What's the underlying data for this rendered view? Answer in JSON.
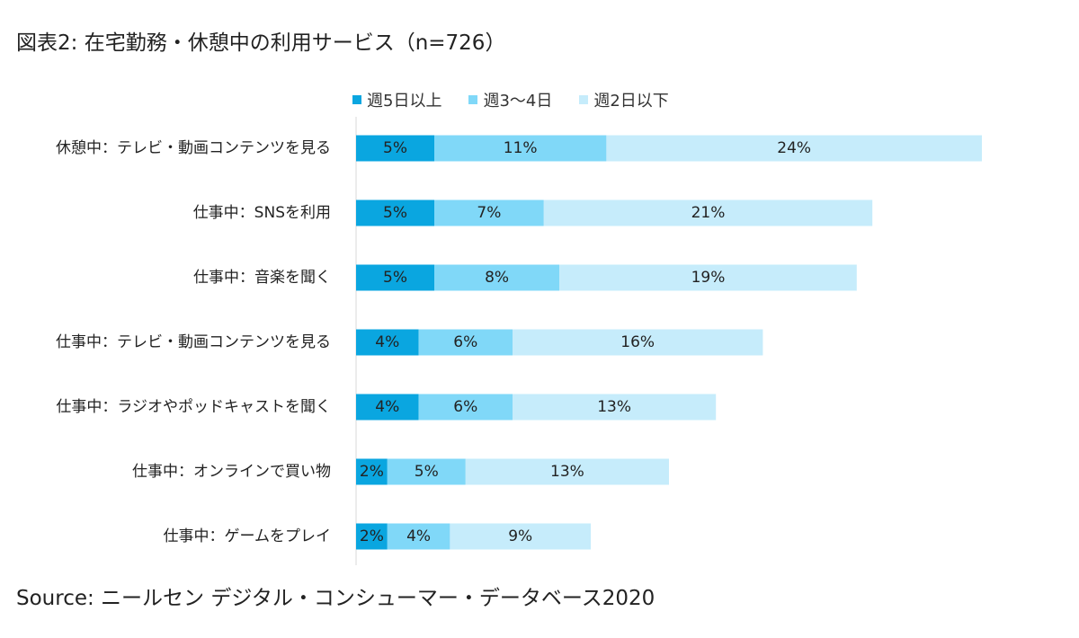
{
  "title": "図表2: 在宅勤務・休憩中の利用サービス（n=726）",
  "source": "Source: ニールセン デジタル・コンシューマー・データベース2020",
  "colors": [
    "#0aa6e0",
    "#80d8f8",
    "#c6ecfb"
  ],
  "chart_data": {
    "type": "bar",
    "orientation": "horizontal",
    "stacked": true,
    "categories": [
      "休憩中：テレビ・動画コンテンツを見る",
      "仕事中：SNSを利用",
      "仕事中：音楽を聞く",
      "仕事中：テレビ・動画コンテンツを見る",
      "仕事中：ラジオやポッドキャストを聞く",
      "仕事中：オンラインで買い物",
      "仕事中：ゲームをプレイ"
    ],
    "series": [
      {
        "name": "週5日以上",
        "values": [
          5,
          5,
          5,
          4,
          4,
          2,
          2
        ]
      },
      {
        "name": "週3〜4日",
        "values": [
          11,
          7,
          8,
          6,
          6,
          5,
          4
        ]
      },
      {
        "name": "週2日以下",
        "values": [
          24,
          21,
          19,
          16,
          13,
          13,
          9
        ]
      }
    ],
    "value_suffix": "%",
    "legend_position": "top",
    "grid": false
  }
}
